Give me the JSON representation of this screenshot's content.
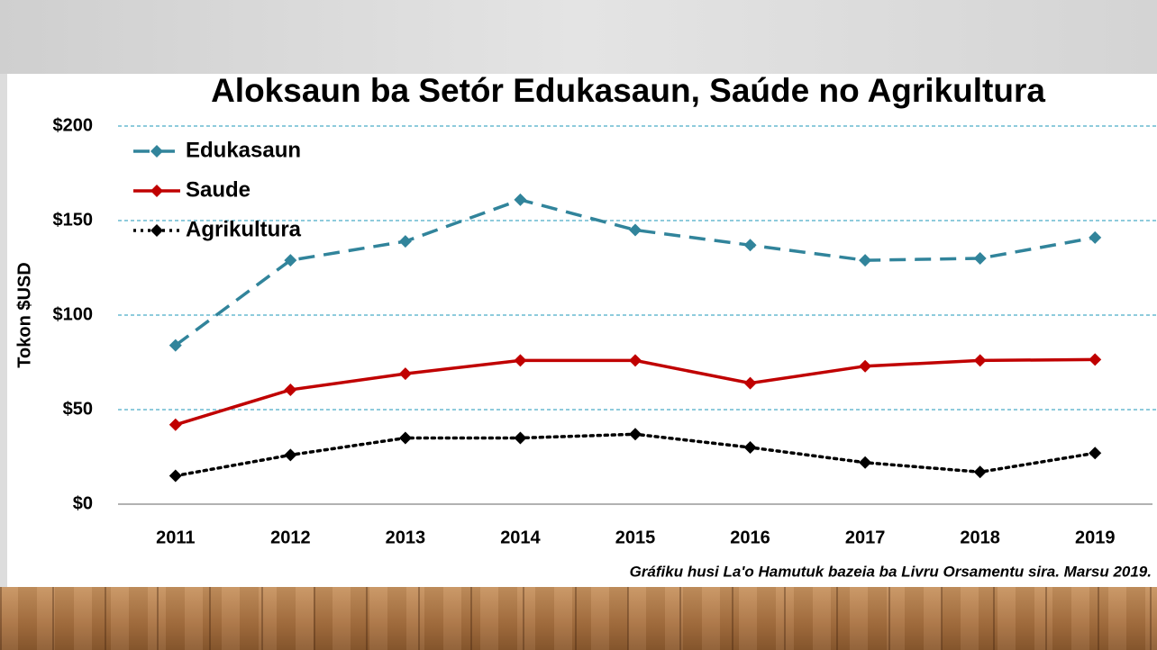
{
  "chart_data": {
    "type": "line",
    "title": "Aloksaun ba Setór Edukasaun, Saúde no Agrikultura",
    "y_label": "Tokon $USD",
    "source": "Gráfiku husi La'o Hamutuk bazeia ba Livru Orsamentu sira. Marsu 2019.",
    "categories": [
      "2011",
      "2012",
      "2013",
      "2014",
      "2015",
      "2016",
      "2017",
      "2018",
      "2019"
    ],
    "series": [
      {
        "name": "Edukasaun",
        "color": "#31849b",
        "dash": "dashed",
        "values": [
          84,
          129,
          139,
          161,
          145,
          137,
          129,
          130,
          141
        ]
      },
      {
        "name": "Saude",
        "color": "#c00000",
        "dash": "solid",
        "values": [
          42,
          60.5,
          69,
          76,
          76,
          64,
          73,
          76,
          76.5
        ]
      },
      {
        "name": "Agrikultura",
        "color": "#000000",
        "dash": "dotted",
        "values": [
          15,
          26,
          35,
          35,
          37,
          30,
          22,
          17,
          27
        ]
      }
    ],
    "ylim": [
      0,
      200
    ],
    "yticks": [
      {
        "value": 0,
        "label": "$0"
      },
      {
        "value": 50,
        "label": "$50"
      },
      {
        "value": 100,
        "label": "$100"
      },
      {
        "value": 150,
        "label": "$150"
      },
      {
        "value": 200,
        "label": "$200"
      }
    ],
    "grid": true,
    "legend": "top-left"
  }
}
